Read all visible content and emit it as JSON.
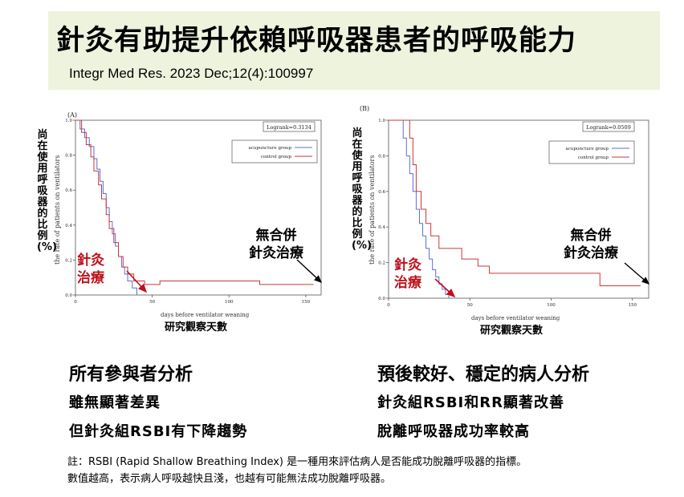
{
  "slide": {
    "title": "針灸有助提升依賴呼吸器患者的呼吸能力",
    "citation": "Integr Med Res. 2023 Dec;12(4):100997"
  },
  "panels": {
    "left": {
      "tag": "(A)",
      "ylabel_cn": "尚在使用呼吸器的比例(%)",
      "ylabel_en": "the rate of patients on ventilators",
      "xlabel_en": "days before ventilator weaning",
      "xlabel_cn": "研究觀察天數",
      "annotation_acu": "針灸\n治療",
      "annotation_ctrl": "無合併\n針灸治療",
      "heading": "所有參與者分析",
      "line1": "雖無顯著差異",
      "line2": "但針灸組RSBI有下降趨勢"
    },
    "right": {
      "tag": "(B)",
      "ylabel_cn": "尚在使用呼吸器的比例(%)",
      "ylabel_en": "the rate of patients on ventilators",
      "xlabel_en": "days before ventilator weaning",
      "xlabel_cn": "研究觀察天數",
      "annotation_acu": "針灸\n治療",
      "annotation_ctrl": "無合併\n針灸治療",
      "heading": "預後較好、穩定的病人分析",
      "line1": "針灸組RSBI和RR顯著改善",
      "line2": "脫離呼吸器成功率較高"
    }
  },
  "note": {
    "line1": "註：RSBI (Rapid Shallow Breathing Index) 是一種用來評估病人是否能成功脫離呼吸器的指標。",
    "line2": "數值越高，表示病人呼吸越快且淺，也越有可能無法成功脫離呼吸器。"
  },
  "colors": {
    "acupuncture": "#5b6fd6",
    "control": "#c9373a",
    "annotation": "#c0101a",
    "band": "#eef3dd"
  },
  "chart_data": [
    {
      "type": "line",
      "step": true,
      "xlim": [
        0,
        160
      ],
      "ylim": [
        0,
        1.0
      ],
      "xticks": [
        "0",
        "50",
        "100",
        "150"
      ],
      "yticks": [
        "0.0",
        "0.2",
        "0.4",
        "0.6",
        "0.8",
        "1.0"
      ],
      "logrank": "Logrank=0.3134",
      "series": [
        {
          "name": "acupuncture group",
          "color": "#5b6fd6",
          "x": [
            0,
            3,
            6,
            9,
            12,
            14,
            16,
            18,
            20,
            22,
            24,
            26,
            28,
            30,
            32,
            34,
            37,
            40
          ],
          "y": [
            1.0,
            0.95,
            0.9,
            0.85,
            0.78,
            0.72,
            0.65,
            0.58,
            0.5,
            0.42,
            0.35,
            0.28,
            0.22,
            0.16,
            0.12,
            0.08,
            0.04,
            0.0
          ]
        },
        {
          "name": "control group",
          "color": "#c9373a",
          "x": [
            0,
            4,
            7,
            10,
            12,
            15,
            17,
            20,
            22,
            25,
            28,
            31,
            34,
            38,
            45,
            55,
            80,
            120,
            155
          ],
          "y": [
            1.0,
            0.93,
            0.86,
            0.79,
            0.71,
            0.63,
            0.55,
            0.46,
            0.38,
            0.3,
            0.22,
            0.16,
            0.12,
            0.08,
            0.06,
            0.08,
            0.08,
            0.06,
            0.06
          ]
        }
      ]
    },
    {
      "type": "line",
      "step": true,
      "xlim": [
        0,
        160
      ],
      "ylim": [
        0,
        1.0
      ],
      "xticks": [
        "0",
        "50",
        "100",
        "150"
      ],
      "yticks": [
        "0.0",
        "0.2",
        "0.4",
        "0.6",
        "0.8",
        "1.0"
      ],
      "logrank": "Logrank=0.0509",
      "series": [
        {
          "name": "acupuncture group",
          "color": "#5b6fd6",
          "x": [
            0,
            9,
            11,
            13,
            15,
            17,
            19,
            21,
            23,
            25,
            27,
            29,
            31,
            33,
            35,
            37
          ],
          "y": [
            1.0,
            0.9,
            0.8,
            0.7,
            0.6,
            0.5,
            0.42,
            0.35,
            0.28,
            0.22,
            0.16,
            0.12,
            0.08,
            0.05,
            0.02,
            0.0
          ]
        },
        {
          "name": "control group",
          "color": "#c9373a",
          "x": [
            0,
            13,
            15,
            17,
            20,
            23,
            26,
            31,
            45,
            55,
            62,
            70,
            130,
            155
          ],
          "y": [
            1.0,
            0.9,
            0.75,
            0.6,
            0.5,
            0.42,
            0.35,
            0.28,
            0.22,
            0.18,
            0.14,
            0.14,
            0.07,
            0.07
          ]
        }
      ]
    }
  ]
}
